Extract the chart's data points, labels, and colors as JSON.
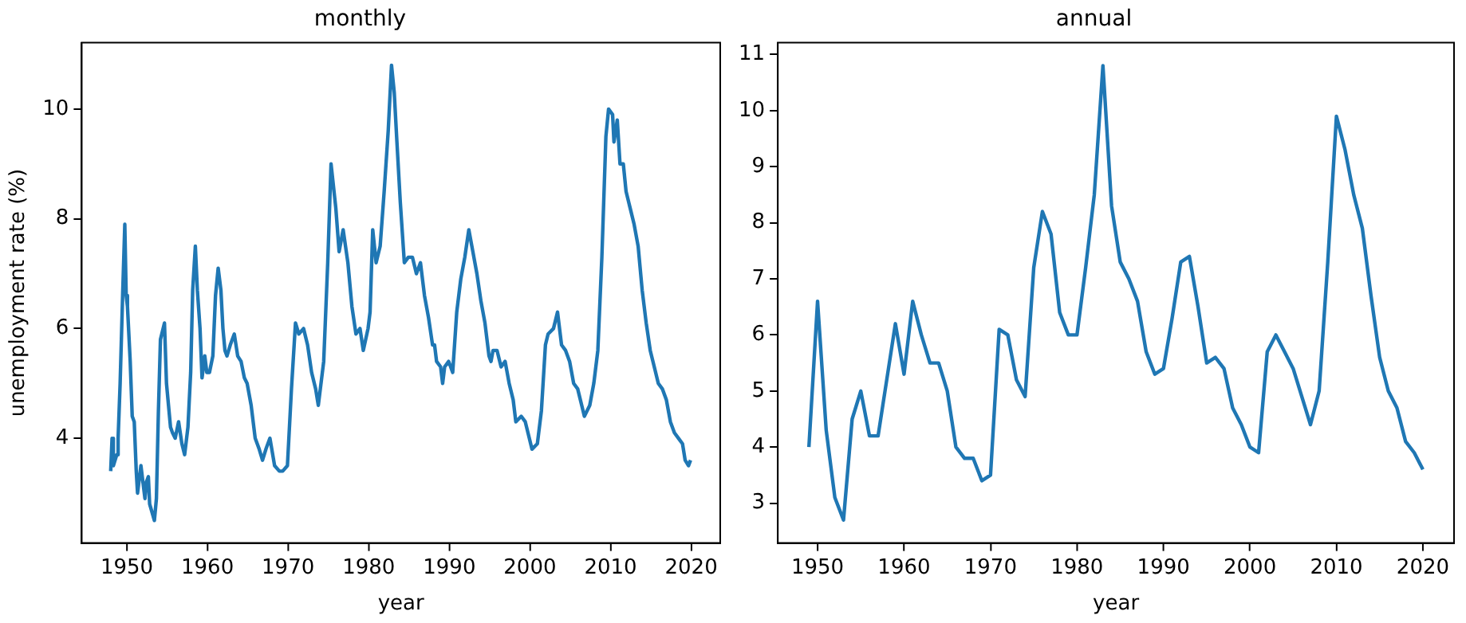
{
  "chart_data": [
    {
      "type": "line",
      "title": "monthly",
      "xlabel": "year",
      "ylabel": "unemployment rate (%)",
      "grid": false,
      "legend": false,
      "x": [
        1948.0,
        1948.17,
        1948.33,
        1948.75,
        1948.92,
        1949.17,
        1949.5,
        1949.75,
        1949.92,
        1950.08,
        1950.42,
        1950.67,
        1950.92,
        1951.17,
        1951.33,
        1951.58,
        1951.75,
        1952.0,
        1952.25,
        1952.42,
        1952.67,
        1952.83,
        1953.42,
        1953.67,
        1953.92,
        1954.17,
        1954.67,
        1954.92,
        1955.17,
        1955.42,
        1955.67,
        1956.0,
        1956.42,
        1956.83,
        1957.17,
        1957.58,
        1957.92,
        1958.17,
        1958.5,
        1958.75,
        1959.08,
        1959.33,
        1959.67,
        1959.92,
        1960.25,
        1960.67,
        1961.0,
        1961.33,
        1961.67,
        1961.92,
        1962.17,
        1962.42,
        1962.83,
        1963.33,
        1963.75,
        1964.17,
        1964.58,
        1964.92,
        1965.42,
        1965.92,
        1966.42,
        1966.83,
        1967.25,
        1967.75,
        1968.33,
        1968.92,
        1969.33,
        1969.92,
        1970.42,
        1970.92,
        1971.33,
        1971.92,
        1972.42,
        1972.92,
        1973.42,
        1973.75,
        1974.42,
        1974.92,
        1975.33,
        1975.92,
        1976.33,
        1976.83,
        1977.42,
        1977.92,
        1978.42,
        1978.92,
        1979.33,
        1979.92,
        1980.17,
        1980.5,
        1980.92,
        1981.42,
        1981.92,
        1982.42,
        1982.83,
        1983.17,
        1983.5,
        1983.92,
        1984.42,
        1984.92,
        1985.42,
        1985.92,
        1986.42,
        1986.92,
        1987.42,
        1987.92,
        1988.17,
        1988.42,
        1988.92,
        1989.17,
        1989.42,
        1989.92,
        1990.42,
        1990.92,
        1991.42,
        1991.92,
        1992.42,
        1992.92,
        1993.42,
        1993.92,
        1994.42,
        1994.92,
        1995.17,
        1995.42,
        1995.92,
        1996.42,
        1996.92,
        1997.42,
        1997.92,
        1998.25,
        1998.92,
        1999.42,
        1999.92,
        2000.25,
        2000.92,
        2001.42,
        2001.92,
        2002.25,
        2002.92,
        2003.42,
        2003.92,
        2004.42,
        2004.92,
        2005.42,
        2005.92,
        2006.42,
        2006.75,
        2007.42,
        2007.92,
        2008.42,
        2008.92,
        2009.42,
        2009.75,
        2010.25,
        2010.42,
        2010.83,
        2011.17,
        2011.58,
        2011.92,
        2012.42,
        2012.92,
        2013.42,
        2013.92,
        2014.42,
        2014.92,
        2015.42,
        2015.92,
        2016.42,
        2016.92,
        2017.42,
        2017.92,
        2018.42,
        2018.92,
        2019.25,
        2019.67,
        2019.92
      ],
      "series": [
        {
          "color": "#1f77b4",
          "values": [
            3.4,
            4.0,
            3.5,
            3.7,
            4.0,
            5.0,
            6.7,
            7.9,
            6.6,
            6.4,
            5.4,
            4.4,
            4.3,
            3.4,
            3.0,
            3.3,
            3.5,
            3.2,
            2.9,
            3.2,
            3.3,
            2.8,
            2.5,
            2.9,
            4.5,
            5.8,
            6.1,
            5.0,
            4.6,
            4.2,
            4.1,
            4.0,
            4.3,
            3.9,
            3.7,
            4.2,
            5.2,
            6.7,
            7.5,
            6.7,
            6.0,
            5.1,
            5.5,
            5.2,
            5.2,
            5.5,
            6.6,
            7.1,
            6.7,
            6.0,
            5.6,
            5.5,
            5.7,
            5.9,
            5.5,
            5.4,
            5.1,
            5.0,
            4.6,
            4.0,
            3.8,
            3.6,
            3.8,
            4.0,
            3.5,
            3.4,
            3.4,
            3.5,
            4.9,
            6.1,
            5.9,
            6.0,
            5.7,
            5.2,
            4.9,
            4.6,
            5.4,
            7.2,
            9.0,
            8.2,
            7.4,
            7.8,
            7.2,
            6.4,
            5.9,
            6.0,
            5.6,
            6.0,
            6.3,
            7.8,
            7.2,
            7.5,
            8.5,
            9.6,
            10.8,
            10.3,
            9.4,
            8.3,
            7.2,
            7.3,
            7.3,
            7.0,
            7.2,
            6.6,
            6.2,
            5.7,
            5.7,
            5.4,
            5.3,
            5.0,
            5.3,
            5.4,
            5.2,
            6.3,
            6.9,
            7.3,
            7.8,
            7.4,
            7.0,
            6.5,
            6.1,
            5.5,
            5.4,
            5.6,
            5.6,
            5.3,
            5.4,
            5.0,
            4.7,
            4.3,
            4.4,
            4.3,
            4.0,
            3.8,
            3.9,
            4.5,
            5.7,
            5.9,
            6.0,
            6.3,
            5.7,
            5.6,
            5.4,
            5.0,
            4.9,
            4.6,
            4.4,
            4.6,
            5.0,
            5.6,
            7.3,
            9.5,
            10.0,
            9.9,
            9.4,
            9.8,
            9.0,
            9.0,
            8.5,
            8.2,
            7.9,
            7.5,
            6.7,
            6.1,
            5.6,
            5.3,
            5.0,
            4.9,
            4.7,
            4.3,
            4.1,
            4.0,
            3.9,
            3.6,
            3.5,
            3.6
          ]
        }
      ],
      "xlim": [
        1944.4,
        2023.6
      ],
      "xticks": [
        1950,
        1960,
        1970,
        1980,
        1990,
        2000,
        2010,
        2020
      ],
      "ylim": [
        2.09,
        11.21
      ],
      "yticks": [
        4,
        6,
        8,
        10
      ]
    },
    {
      "type": "line",
      "title": "annual",
      "xlabel": "year",
      "grid": false,
      "legend": false,
      "x": [
        1949,
        1950,
        1951,
        1952,
        1953,
        1954,
        1955,
        1956,
        1957,
        1958,
        1959,
        1960,
        1961,
        1962,
        1963,
        1964,
        1965,
        1966,
        1967,
        1968,
        1969,
        1970,
        1971,
        1972,
        1973,
        1974,
        1975,
        1976,
        1977,
        1978,
        1979,
        1980,
        1981,
        1982,
        1983,
        1984,
        1985,
        1986,
        1987,
        1988,
        1989,
        1990,
        1991,
        1992,
        1993,
        1994,
        1995,
        1996,
        1997,
        1998,
        1999,
        2000,
        2001,
        2002,
        2003,
        2004,
        2005,
        2006,
        2007,
        2008,
        2009,
        2010,
        2011,
        2012,
        2013,
        2014,
        2015,
        2016,
        2017,
        2018,
        2019,
        2020
      ],
      "series": [
        {
          "color": "#1f77b4",
          "values": [
            4.0,
            6.6,
            4.3,
            3.1,
            2.7,
            4.5,
            5.0,
            4.2,
            4.2,
            5.2,
            6.2,
            5.3,
            6.6,
            6.0,
            5.5,
            5.5,
            5.0,
            4.0,
            3.8,
            3.8,
            3.4,
            3.5,
            6.1,
            6.0,
            5.2,
            4.9,
            7.2,
            8.2,
            7.8,
            6.4,
            6.0,
            6.0,
            7.2,
            8.5,
            10.8,
            8.3,
            7.3,
            7.0,
            6.6,
            5.7,
            5.3,
            5.4,
            6.3,
            7.3,
            7.4,
            6.5,
            5.5,
            5.6,
            5.4,
            4.7,
            4.4,
            4.0,
            3.9,
            5.7,
            6.0,
            5.7,
            5.4,
            4.9,
            4.4,
            5.0,
            7.3,
            9.9,
            9.3,
            8.5,
            7.9,
            6.7,
            5.6,
            5.0,
            4.7,
            4.1,
            3.9,
            3.6
          ]
        }
      ],
      "xlim": [
        1945.4,
        2023.6
      ],
      "xticks": [
        1950,
        1960,
        1970,
        1980,
        1990,
        2000,
        2010,
        2020
      ],
      "ylim": [
        2.29,
        11.21
      ],
      "yticks": [
        3,
        4,
        5,
        6,
        7,
        8,
        9,
        10,
        11
      ]
    }
  ]
}
